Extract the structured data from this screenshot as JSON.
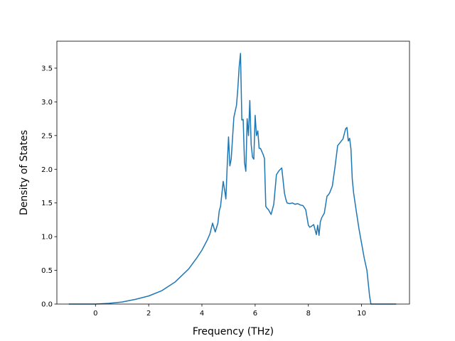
{
  "chart_data": {
    "type": "line",
    "xlabel": "Frequency (THz)",
    "ylabel": "Density of States",
    "xlim": [
      -1.45,
      11.8
    ],
    "ylim": [
      0,
      3.9
    ],
    "xticks": [
      0,
      2,
      4,
      6,
      8,
      10
    ],
    "yticks": [
      0.0,
      0.5,
      1.0,
      1.5,
      2.0,
      2.5,
      3.0,
      3.5
    ],
    "grid": false,
    "legend": "none",
    "colors": {
      "line": "#1f77b4"
    },
    "series": [
      {
        "x": [
          -1.0,
          0.0,
          0.5,
          1.0,
          1.5,
          2.0,
          2.5,
          3.0,
          3.5,
          3.8,
          4.0,
          4.2,
          4.3,
          4.4,
          4.5,
          4.6,
          4.65,
          4.7,
          4.8,
          4.85,
          4.9,
          4.95,
          5.0,
          5.05,
          5.1,
          5.2,
          5.3,
          5.35,
          5.4,
          5.45,
          5.5,
          5.55,
          5.6,
          5.65,
          5.7,
          5.75,
          5.8,
          5.85,
          5.9,
          5.95,
          6.0,
          6.05,
          6.1,
          6.15,
          6.2,
          6.3,
          6.35,
          6.4,
          6.45,
          6.5,
          6.6,
          6.7,
          6.8,
          6.9,
          7.0,
          7.1,
          7.15,
          7.2,
          7.3,
          7.4,
          7.5,
          7.6,
          7.7,
          7.8,
          7.9,
          8.0,
          8.05,
          8.1,
          8.2,
          8.3,
          8.35,
          8.4,
          8.45,
          8.5,
          8.6,
          8.7,
          8.75,
          8.8,
          8.9,
          9.0,
          9.1,
          9.2,
          9.3,
          9.4,
          9.45,
          9.5,
          9.55,
          9.6,
          9.65,
          9.7,
          9.8,
          9.9,
          10.0,
          10.1,
          10.2,
          10.3,
          10.35,
          10.4,
          11.3
        ],
        "y": [
          0.0,
          0.0,
          0.01,
          0.03,
          0.07,
          0.12,
          0.2,
          0.33,
          0.52,
          0.68,
          0.8,
          0.95,
          1.04,
          1.2,
          1.07,
          1.2,
          1.38,
          1.45,
          1.82,
          1.7,
          1.56,
          2.05,
          2.48,
          2.05,
          2.15,
          2.77,
          2.95,
          3.2,
          3.52,
          3.72,
          2.73,
          2.74,
          2.1,
          1.97,
          2.75,
          2.5,
          3.02,
          2.37,
          2.18,
          2.15,
          2.8,
          2.5,
          2.57,
          2.31,
          2.31,
          2.22,
          2.16,
          1.45,
          1.42,
          1.4,
          1.33,
          1.48,
          1.92,
          1.98,
          2.02,
          1.65,
          1.56,
          1.5,
          1.49,
          1.5,
          1.48,
          1.49,
          1.47,
          1.46,
          1.4,
          1.17,
          1.14,
          1.15,
          1.18,
          1.03,
          1.17,
          1.02,
          1.22,
          1.28,
          1.35,
          1.6,
          1.62,
          1.65,
          1.75,
          2.03,
          2.35,
          2.4,
          2.45,
          2.6,
          2.62,
          2.42,
          2.46,
          2.3,
          1.85,
          1.65,
          1.38,
          1.12,
          0.9,
          0.68,
          0.5,
          0.12,
          0.0,
          0.0,
          0.0
        ]
      }
    ]
  }
}
